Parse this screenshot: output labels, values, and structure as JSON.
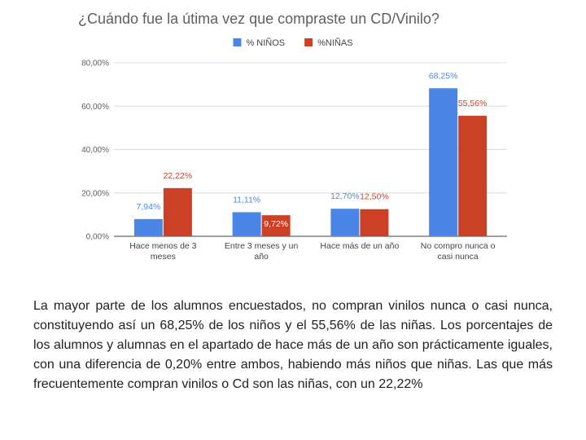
{
  "chart_data": {
    "type": "bar",
    "title": "¿Cuándo fue la útima vez que compraste un CD/Vinilo?",
    "categories": [
      [
        "Hace menos de 3",
        "meses"
      ],
      [
        "Entre 3 meses y un",
        "año"
      ],
      [
        "Hace más de un año"
      ],
      [
        "No compro nunca o",
        "casi nunca"
      ]
    ],
    "series": [
      {
        "name": "% NIÑOS",
        "color": "#4a86e8",
        "label_color": "#4a86e8",
        "values": [
          7.94,
          11.11,
          12.7,
          68.25
        ],
        "labels": [
          "7,94%",
          "11,11%",
          "12,70%",
          "68,25%"
        ]
      },
      {
        "name": "%NIÑAS",
        "color": "#cc4125",
        "label_color": "#cc4125",
        "values": [
          22.22,
          9.72,
          12.5,
          55.56
        ],
        "labels": [
          "22,22%",
          "9,72%",
          "12,50%",
          "55,56%"
        ]
      }
    ],
    "y_ticks": [
      0,
      20,
      40,
      60,
      80
    ],
    "y_tick_labels": [
      "0,00%",
      "20,00%",
      "40,00%",
      "60,00%",
      "80,00%"
    ],
    "ylim": [
      0,
      80
    ],
    "grid": true,
    "legend": "top-center"
  },
  "text": {
    "paragraph": "La mayor parte de los alumnos encuestados, no compran vinilos nunca o casi nunca, constituyendo así un  68,25% de los niños y el 55,56% de las niñas. Los porcentajes de los alumnos y alumnas en el apartado de hace más de un año son prácticamente iguales, con una diferencia de 0,20% entre ambos, habiendo más niños que niñas. Las que más frecuentemente compran vinilos o Cd son las niñas, con un 22,22%"
  }
}
